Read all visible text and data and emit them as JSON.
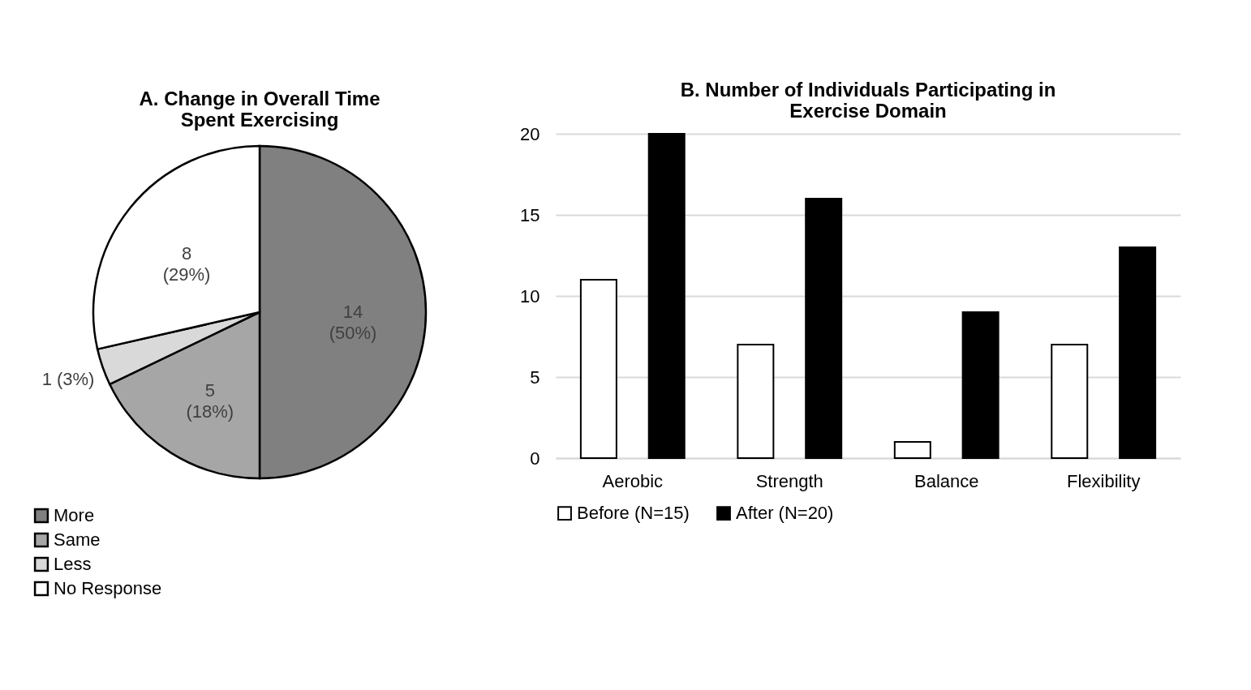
{
  "chart_data": [
    {
      "type": "pie",
      "title": "A. Change in Overall Time Spent Exercising",
      "categories": [
        "More",
        "Same",
        "Less",
        "No Response"
      ],
      "values": [
        14,
        5,
        1,
        8
      ],
      "colors": [
        "#808080",
        "#a6a6a6",
        "#d9d9d9",
        "#ffffff"
      ],
      "value_labels": [
        "14 (50%)",
        "5 (18%)",
        "1 (3%)",
        "8 (29%)"
      ],
      "legend": "bottom left"
    },
    {
      "type": "bar",
      "title": "B. Number of Individuals Participating in Exercise Domain",
      "categories": [
        "Aerobic",
        "Strength",
        "Balance",
        "Flexibility"
      ],
      "series": [
        {
          "name": "Before (N=15)",
          "color": "#ffffff",
          "values": [
            11,
            7,
            1,
            7
          ]
        },
        {
          "name": "After (N=20)",
          "color": "#000000",
          "values": [
            20,
            16,
            9,
            13
          ]
        }
      ],
      "ylim": [
        0,
        20
      ],
      "yticks": [
        0,
        5,
        10,
        15,
        20
      ],
      "grid": "y",
      "legend": "bottom"
    }
  ]
}
